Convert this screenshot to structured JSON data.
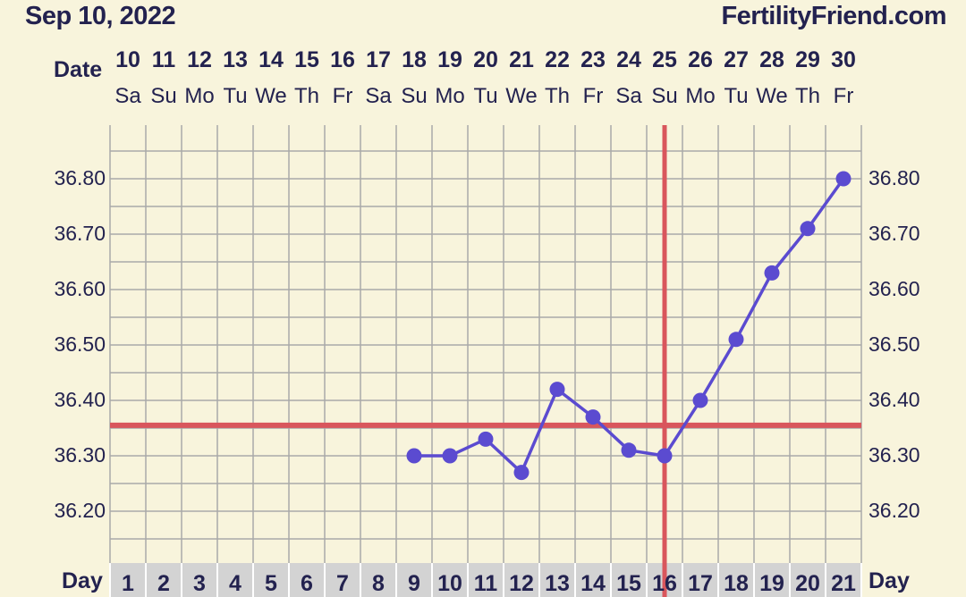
{
  "header": {
    "date": "Sep 10, 2022",
    "site": "FertilityFriend.com",
    "date_label": "Date",
    "day_label": "Day"
  },
  "colors": {
    "background": "#f8f4dc",
    "grid": "#a9a9a9",
    "line": "#5b4bd0",
    "coverline": "#d9565c",
    "text": "#23224f",
    "day_row_bg": "#d3d3d3"
  },
  "chart_data": {
    "type": "line",
    "title": "",
    "xlabel": "Day",
    "ylabel": "",
    "dates": [
      "10",
      "11",
      "12",
      "13",
      "14",
      "15",
      "16",
      "17",
      "18",
      "19",
      "20",
      "21",
      "22",
      "23",
      "24",
      "25",
      "26",
      "27",
      "28",
      "29",
      "30"
    ],
    "weekdays": [
      "Sa",
      "Su",
      "Mo",
      "Tu",
      "We",
      "Th",
      "Fr",
      "Sa",
      "Su",
      "Mo",
      "Tu",
      "We",
      "Th",
      "Fr",
      "Sa",
      "Su",
      "Mo",
      "Tu",
      "We",
      "Th",
      "Fr"
    ],
    "days": [
      1,
      2,
      3,
      4,
      5,
      6,
      7,
      8,
      9,
      10,
      11,
      12,
      13,
      14,
      15,
      16,
      17,
      18,
      19,
      20,
      21
    ],
    "ylim": [
      36.15,
      36.9
    ],
    "yticks": [
      "36.20",
      "36.30",
      "36.40",
      "36.50",
      "36.60",
      "36.70",
      "36.80"
    ],
    "series": [
      {
        "x": [
          9,
          10,
          11,
          12,
          13,
          14,
          15,
          16,
          17,
          18,
          19,
          20,
          21
        ],
        "values": [
          36.3,
          36.3,
          36.33,
          36.27,
          36.42,
          36.37,
          36.31,
          36.3,
          36.4,
          36.51,
          36.63,
          36.71,
          36.8
        ]
      }
    ],
    "coverline": 36.355,
    "ovulation_day": 16,
    "grid": true
  }
}
